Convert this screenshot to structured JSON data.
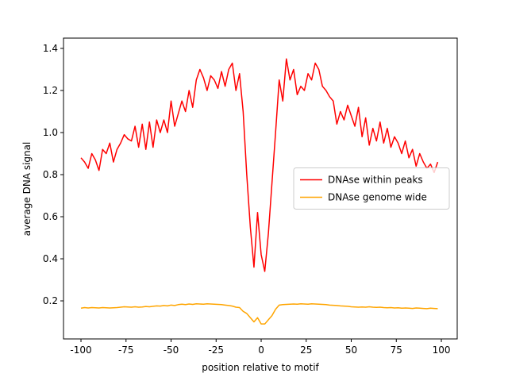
{
  "chart_data": {
    "type": "line",
    "xlabel": "position relative to motif",
    "ylabel": "average DNA signal",
    "x": [
      -100,
      -98,
      -96,
      -94,
      -92,
      -90,
      -88,
      -86,
      -84,
      -82,
      -80,
      -78,
      -76,
      -74,
      -72,
      -70,
      -68,
      -66,
      -64,
      -62,
      -60,
      -58,
      -56,
      -54,
      -52,
      -50,
      -48,
      -46,
      -44,
      -42,
      -40,
      -38,
      -36,
      -34,
      -32,
      -30,
      -28,
      -26,
      -24,
      -22,
      -20,
      -18,
      -16,
      -14,
      -12,
      -10,
      -8,
      -6,
      -4,
      -2,
      0,
      2,
      4,
      6,
      8,
      10,
      12,
      14,
      16,
      18,
      20,
      22,
      24,
      26,
      28,
      30,
      32,
      34,
      36,
      38,
      40,
      42,
      44,
      46,
      48,
      50,
      52,
      54,
      56,
      58,
      60,
      62,
      64,
      66,
      68,
      70,
      72,
      74,
      76,
      78,
      80,
      82,
      84,
      86,
      88,
      90,
      92,
      94,
      96,
      98
    ],
    "series": [
      {
        "name": "DNAse within peaks",
        "color": "#ff0000",
        "values": [
          0.88,
          0.86,
          0.83,
          0.9,
          0.87,
          0.82,
          0.92,
          0.9,
          0.95,
          0.86,
          0.92,
          0.95,
          0.99,
          0.97,
          0.96,
          1.03,
          0.93,
          1.04,
          0.92,
          1.05,
          0.93,
          1.06,
          1.0,
          1.06,
          1.0,
          1.15,
          1.03,
          1.09,
          1.15,
          1.1,
          1.2,
          1.12,
          1.25,
          1.3,
          1.26,
          1.2,
          1.27,
          1.25,
          1.21,
          1.29,
          1.22,
          1.3,
          1.33,
          1.2,
          1.28,
          1.1,
          0.8,
          0.55,
          0.36,
          0.62,
          0.42,
          0.34,
          0.52,
          0.76,
          1.0,
          1.25,
          1.15,
          1.35,
          1.25,
          1.3,
          1.18,
          1.22,
          1.2,
          1.28,
          1.25,
          1.33,
          1.3,
          1.22,
          1.2,
          1.17,
          1.15,
          1.04,
          1.1,
          1.06,
          1.13,
          1.08,
          1.03,
          1.12,
          0.98,
          1.07,
          0.94,
          1.02,
          0.96,
          1.05,
          0.95,
          1.02,
          0.93,
          0.98,
          0.95,
          0.9,
          0.96,
          0.88,
          0.92,
          0.84,
          0.9,
          0.86,
          0.83,
          0.85,
          0.81,
          0.86
        ]
      },
      {
        "name": "DNAse genome wide",
        "color": "#ffa500",
        "values": [
          0.165,
          0.168,
          0.166,
          0.168,
          0.167,
          0.166,
          0.168,
          0.167,
          0.166,
          0.167,
          0.168,
          0.17,
          0.172,
          0.171,
          0.17,
          0.172,
          0.17,
          0.171,
          0.173,
          0.172,
          0.174,
          0.176,
          0.175,
          0.178,
          0.176,
          0.18,
          0.178,
          0.182,
          0.184,
          0.182,
          0.185,
          0.183,
          0.186,
          0.185,
          0.184,
          0.186,
          0.185,
          0.184,
          0.183,
          0.182,
          0.18,
          0.178,
          0.175,
          0.17,
          0.168,
          0.15,
          0.14,
          0.12,
          0.1,
          0.12,
          0.09,
          0.09,
          0.11,
          0.13,
          0.16,
          0.18,
          0.182,
          0.183,
          0.184,
          0.185,
          0.184,
          0.186,
          0.185,
          0.184,
          0.186,
          0.185,
          0.184,
          0.183,
          0.182,
          0.18,
          0.179,
          0.178,
          0.176,
          0.175,
          0.174,
          0.172,
          0.171,
          0.17,
          0.171,
          0.17,
          0.172,
          0.17,
          0.169,
          0.17,
          0.168,
          0.167,
          0.168,
          0.166,
          0.167,
          0.165,
          0.166,
          0.165,
          0.164,
          0.166,
          0.165,
          0.164,
          0.163,
          0.165,
          0.164,
          0.163
        ]
      }
    ],
    "xlim": [
      -109.7,
      108.8
    ],
    "xticks": [
      -100,
      -75,
      -50,
      -25,
      0,
      25,
      50,
      75,
      100
    ],
    "ylim": [
      0.019,
      1.449
    ],
    "yticks": [
      0.2,
      0.4,
      0.6,
      0.8,
      {
        "value": 1.0,
        "label": "1.0"
      },
      1.2,
      1.4
    ],
    "legend": "center right",
    "grid": false
  }
}
